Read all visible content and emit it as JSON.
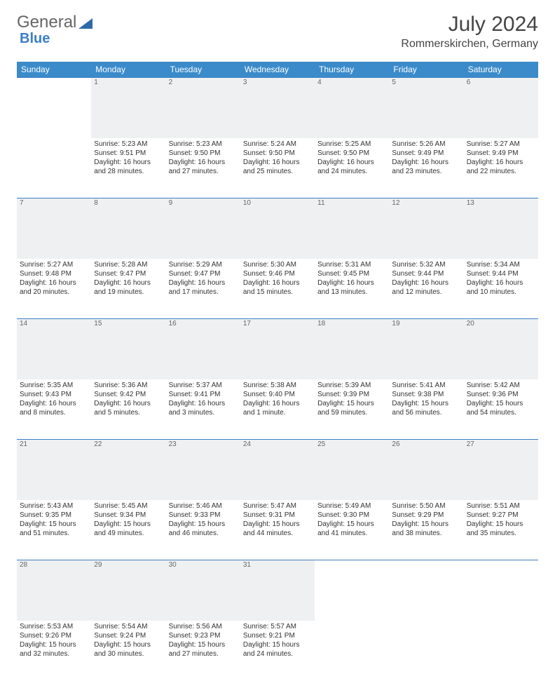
{
  "logo": {
    "general": "General",
    "blue": "Blue"
  },
  "title": "July 2024",
  "location": "Rommerskirchen, Germany",
  "colors": {
    "header_bg": "#3b8bca",
    "header_text": "#ffffff",
    "border": "#3b7fc4",
    "daynum_bg": "#eef0f2",
    "daynum_text": "#666666",
    "body_text": "#333333",
    "logo_gray": "#666666",
    "logo_blue": "#3b7fc4"
  },
  "day_headers": [
    "Sunday",
    "Monday",
    "Tuesday",
    "Wednesday",
    "Thursday",
    "Friday",
    "Saturday"
  ],
  "weeks": [
    {
      "days": [
        {
          "num": "",
          "sunrise": "",
          "sunset": "",
          "daylight": ""
        },
        {
          "num": "1",
          "sunrise": "Sunrise: 5:23 AM",
          "sunset": "Sunset: 9:51 PM",
          "daylight": "Daylight: 16 hours and 28 minutes."
        },
        {
          "num": "2",
          "sunrise": "Sunrise: 5:23 AM",
          "sunset": "Sunset: 9:50 PM",
          "daylight": "Daylight: 16 hours and 27 minutes."
        },
        {
          "num": "3",
          "sunrise": "Sunrise: 5:24 AM",
          "sunset": "Sunset: 9:50 PM",
          "daylight": "Daylight: 16 hours and 25 minutes."
        },
        {
          "num": "4",
          "sunrise": "Sunrise: 5:25 AM",
          "sunset": "Sunset: 9:50 PM",
          "daylight": "Daylight: 16 hours and 24 minutes."
        },
        {
          "num": "5",
          "sunrise": "Sunrise: 5:26 AM",
          "sunset": "Sunset: 9:49 PM",
          "daylight": "Daylight: 16 hours and 23 minutes."
        },
        {
          "num": "6",
          "sunrise": "Sunrise: 5:27 AM",
          "sunset": "Sunset: 9:49 PM",
          "daylight": "Daylight: 16 hours and 22 minutes."
        }
      ]
    },
    {
      "days": [
        {
          "num": "7",
          "sunrise": "Sunrise: 5:27 AM",
          "sunset": "Sunset: 9:48 PM",
          "daylight": "Daylight: 16 hours and 20 minutes."
        },
        {
          "num": "8",
          "sunrise": "Sunrise: 5:28 AM",
          "sunset": "Sunset: 9:47 PM",
          "daylight": "Daylight: 16 hours and 19 minutes."
        },
        {
          "num": "9",
          "sunrise": "Sunrise: 5:29 AM",
          "sunset": "Sunset: 9:47 PM",
          "daylight": "Daylight: 16 hours and 17 minutes."
        },
        {
          "num": "10",
          "sunrise": "Sunrise: 5:30 AM",
          "sunset": "Sunset: 9:46 PM",
          "daylight": "Daylight: 16 hours and 15 minutes."
        },
        {
          "num": "11",
          "sunrise": "Sunrise: 5:31 AM",
          "sunset": "Sunset: 9:45 PM",
          "daylight": "Daylight: 16 hours and 13 minutes."
        },
        {
          "num": "12",
          "sunrise": "Sunrise: 5:32 AM",
          "sunset": "Sunset: 9:44 PM",
          "daylight": "Daylight: 16 hours and 12 minutes."
        },
        {
          "num": "13",
          "sunrise": "Sunrise: 5:34 AM",
          "sunset": "Sunset: 9:44 PM",
          "daylight": "Daylight: 16 hours and 10 minutes."
        }
      ]
    },
    {
      "days": [
        {
          "num": "14",
          "sunrise": "Sunrise: 5:35 AM",
          "sunset": "Sunset: 9:43 PM",
          "daylight": "Daylight: 16 hours and 8 minutes."
        },
        {
          "num": "15",
          "sunrise": "Sunrise: 5:36 AM",
          "sunset": "Sunset: 9:42 PM",
          "daylight": "Daylight: 16 hours and 5 minutes."
        },
        {
          "num": "16",
          "sunrise": "Sunrise: 5:37 AM",
          "sunset": "Sunset: 9:41 PM",
          "daylight": "Daylight: 16 hours and 3 minutes."
        },
        {
          "num": "17",
          "sunrise": "Sunrise: 5:38 AM",
          "sunset": "Sunset: 9:40 PM",
          "daylight": "Daylight: 16 hours and 1 minute."
        },
        {
          "num": "18",
          "sunrise": "Sunrise: 5:39 AM",
          "sunset": "Sunset: 9:39 PM",
          "daylight": "Daylight: 15 hours and 59 minutes."
        },
        {
          "num": "19",
          "sunrise": "Sunrise: 5:41 AM",
          "sunset": "Sunset: 9:38 PM",
          "daylight": "Daylight: 15 hours and 56 minutes."
        },
        {
          "num": "20",
          "sunrise": "Sunrise: 5:42 AM",
          "sunset": "Sunset: 9:36 PM",
          "daylight": "Daylight: 15 hours and 54 minutes."
        }
      ]
    },
    {
      "days": [
        {
          "num": "21",
          "sunrise": "Sunrise: 5:43 AM",
          "sunset": "Sunset: 9:35 PM",
          "daylight": "Daylight: 15 hours and 51 minutes."
        },
        {
          "num": "22",
          "sunrise": "Sunrise: 5:45 AM",
          "sunset": "Sunset: 9:34 PM",
          "daylight": "Daylight: 15 hours and 49 minutes."
        },
        {
          "num": "23",
          "sunrise": "Sunrise: 5:46 AM",
          "sunset": "Sunset: 9:33 PM",
          "daylight": "Daylight: 15 hours and 46 minutes."
        },
        {
          "num": "24",
          "sunrise": "Sunrise: 5:47 AM",
          "sunset": "Sunset: 9:31 PM",
          "daylight": "Daylight: 15 hours and 44 minutes."
        },
        {
          "num": "25",
          "sunrise": "Sunrise: 5:49 AM",
          "sunset": "Sunset: 9:30 PM",
          "daylight": "Daylight: 15 hours and 41 minutes."
        },
        {
          "num": "26",
          "sunrise": "Sunrise: 5:50 AM",
          "sunset": "Sunset: 9:29 PM",
          "daylight": "Daylight: 15 hours and 38 minutes."
        },
        {
          "num": "27",
          "sunrise": "Sunrise: 5:51 AM",
          "sunset": "Sunset: 9:27 PM",
          "daylight": "Daylight: 15 hours and 35 minutes."
        }
      ]
    },
    {
      "days": [
        {
          "num": "28",
          "sunrise": "Sunrise: 5:53 AM",
          "sunset": "Sunset: 9:26 PM",
          "daylight": "Daylight: 15 hours and 32 minutes."
        },
        {
          "num": "29",
          "sunrise": "Sunrise: 5:54 AM",
          "sunset": "Sunset: 9:24 PM",
          "daylight": "Daylight: 15 hours and 30 minutes."
        },
        {
          "num": "30",
          "sunrise": "Sunrise: 5:56 AM",
          "sunset": "Sunset: 9:23 PM",
          "daylight": "Daylight: 15 hours and 27 minutes."
        },
        {
          "num": "31",
          "sunrise": "Sunrise: 5:57 AM",
          "sunset": "Sunset: 9:21 PM",
          "daylight": "Daylight: 15 hours and 24 minutes."
        },
        {
          "num": "",
          "sunrise": "",
          "sunset": "",
          "daylight": ""
        },
        {
          "num": "",
          "sunrise": "",
          "sunset": "",
          "daylight": ""
        },
        {
          "num": "",
          "sunrise": "",
          "sunset": "",
          "daylight": ""
        }
      ]
    }
  ]
}
